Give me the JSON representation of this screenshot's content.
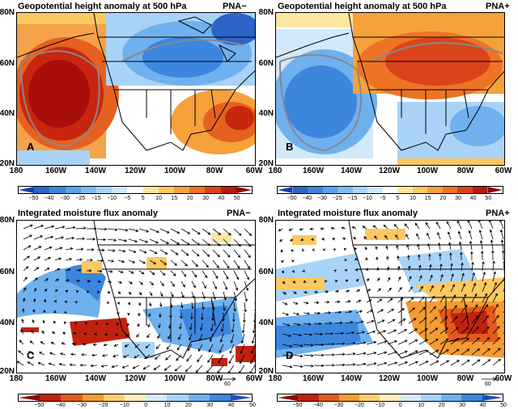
{
  "panels": [
    {
      "title": "Geopotential height anomaly at 500 hPa",
      "tag": "PNA−",
      "letter": "A"
    },
    {
      "title": "Geopotential height anomaly at 500 hPa",
      "tag": "PNA+",
      "letter": "B"
    },
    {
      "title": "Integrated moisture flux anomaly",
      "tag": "PNA−",
      "letter": "C"
    },
    {
      "title": "Integrated moisture flux anomaly",
      "tag": "PNA+",
      "letter": "D"
    }
  ],
  "lat_labels": [
    "80N",
    "60N",
    "40N",
    "20N"
  ],
  "lon_labels": [
    "180",
    "160W",
    "140W",
    "120W",
    "100W",
    "80W",
    "60W"
  ],
  "colorbar_top": {
    "labels": [
      "−50",
      "−40",
      "−30",
      "−25",
      "−15",
      "−10",
      "−5",
      "5",
      "10",
      "15",
      "20",
      "30",
      "40",
      "50"
    ],
    "colors": [
      "#1a3fa8",
      "#2c64c7",
      "#3d86de",
      "#5aa3ea",
      "#7fbdf1",
      "#a9d3f6",
      "#d2e8fb",
      "#ffffff",
      "#fde6a0",
      "#fcc860",
      "#f7a13b",
      "#ee7325",
      "#d9441a",
      "#b51d12",
      "#8a0b08"
    ]
  },
  "colorbar_bottom": {
    "labels": [
      "−50",
      "−40",
      "−30",
      "−20",
      "−10",
      "0",
      "10",
      "20",
      "30",
      "40",
      "50"
    ],
    "colors": [
      "#8a0b08",
      "#c1220f",
      "#e45a1c",
      "#f49b34",
      "#fcd070",
      "#fdeec0",
      "#d6ebfb",
      "#a9d3f6",
      "#6fb1ee",
      "#3d86de",
      "#1f4fb8"
    ]
  },
  "ref_vector_label": "60"
}
